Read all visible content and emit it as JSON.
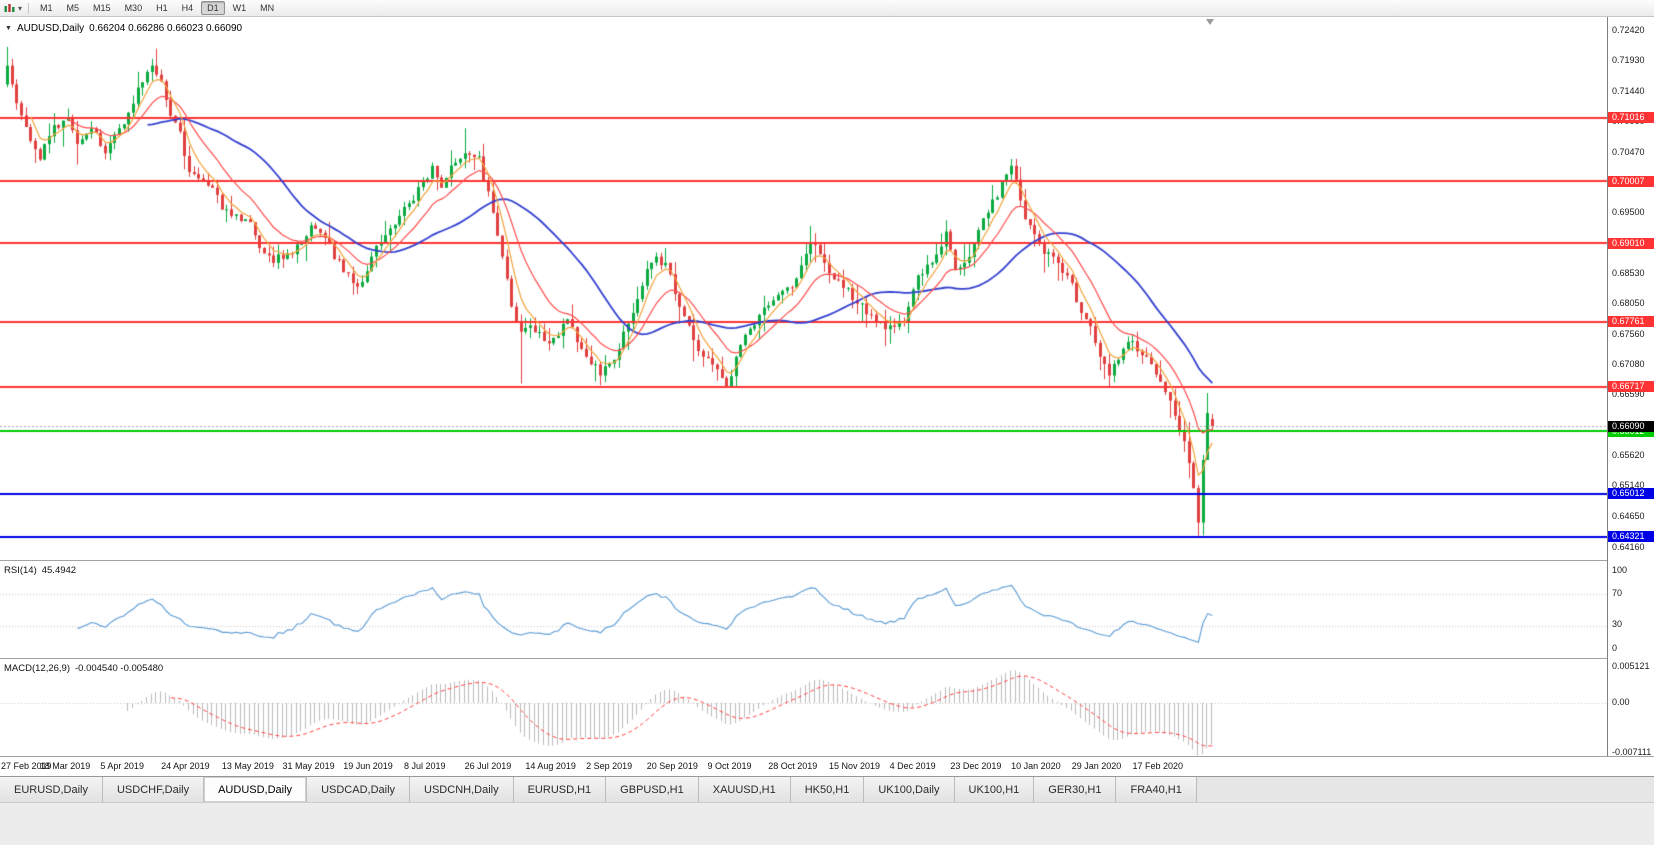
{
  "toolbar": {
    "timeframes": [
      "M1",
      "M5",
      "M15",
      "M30",
      "H1",
      "H4",
      "D1",
      "W1",
      "MN"
    ],
    "active_timeframe": "D1"
  },
  "chart_title": {
    "symbol": "AUDUSD,Daily",
    "ohlc": "0.66204 0.66286 0.66023 0.66090"
  },
  "chart_tabs": {
    "items": [
      "EURUSD,Daily",
      "USDCHF,Daily",
      "AUDUSD,Daily",
      "USDCAD,Daily",
      "USDCNH,Daily",
      "EURUSD,H1",
      "GBPUSD,H1",
      "XAUUSD,H1",
      "HK50,H1",
      "UK100,Daily",
      "UK100,H1",
      "GER30,H1",
      "FRA40,H1"
    ],
    "active_index": 2
  },
  "chart_data": {
    "type": "candlestick",
    "symbol": "AUDUSD",
    "timeframe": "Daily",
    "x_axis": {
      "date_labels": [
        "27 Feb 2019",
        "18 Mar 2019",
        "5 Apr 2019",
        "24 Apr 2019",
        "13 May 2019",
        "31 May 2019",
        "19 Jun 2019",
        "8 Jul 2019",
        "26 Jul 2019",
        "14 Aug 2019",
        "2 Sep 2019",
        "20 Sep 2019",
        "9 Oct 2019",
        "28 Oct 2019",
        "15 Nov 2019",
        "4 Dec 2019",
        "23 Dec 2019",
        "10 Jan 2020",
        "29 Jan 2020",
        "17 Feb 2020"
      ],
      "candles_per_label": 13,
      "candle_count": 259
    },
    "y_axis": {
      "top_price": 0.7242,
      "bottom_price": 0.6416,
      "tick_labels": [
        "0.72420",
        "0.71930",
        "0.71440",
        "0.70960",
        "0.70470",
        "0.69980",
        "0.69500",
        "0.69010",
        "0.68530",
        "0.68050",
        "0.67560",
        "0.67080",
        "0.66590",
        "0.66100",
        "0.65620",
        "0.65140",
        "0.64650",
        "0.64160"
      ]
    },
    "price_anchors": [
      [
        0,
        0.7185
      ],
      [
        2,
        0.7125
      ],
      [
        5,
        0.7065
      ],
      [
        7,
        0.7035
      ],
      [
        10,
        0.709
      ],
      [
        13,
        0.71
      ],
      [
        15,
        0.706
      ],
      [
        18,
        0.7085
      ],
      [
        21,
        0.7045
      ],
      [
        24,
        0.7085
      ],
      [
        26,
        0.711
      ],
      [
        28,
        0.715
      ],
      [
        30,
        0.7175
      ],
      [
        31,
        0.7185
      ],
      [
        33,
        0.716
      ],
      [
        35,
        0.7105
      ],
      [
        37,
        0.708
      ],
      [
        39,
        0.7015
      ],
      [
        41,
        0.7005
      ],
      [
        44,
        0.699
      ],
      [
        46,
        0.6955
      ],
      [
        48,
        0.6945
      ],
      [
        52,
        0.6935
      ],
      [
        55,
        0.6885
      ],
      [
        57,
        0.687
      ],
      [
        60,
        0.6885
      ],
      [
        63,
        0.69
      ],
      [
        65,
        0.693
      ],
      [
        68,
        0.691
      ],
      [
        72,
        0.6855
      ],
      [
        75,
        0.6832
      ],
      [
        78,
        0.688
      ],
      [
        82,
        0.6925
      ],
      [
        86,
        0.6965
      ],
      [
        89,
        0.7
      ],
      [
        91,
        0.7025
      ],
      [
        93,
        0.699
      ],
      [
        96,
        0.703
      ],
      [
        98,
        0.7045
      ],
      [
        101,
        0.704
      ],
      [
        104,
        0.695
      ],
      [
        106,
        0.688
      ],
      [
        108,
        0.68
      ],
      [
        110,
        0.676
      ],
      [
        112,
        0.677
      ],
      [
        115,
        0.6745
      ],
      [
        117,
        0.675
      ],
      [
        120,
        0.678
      ],
      [
        124,
        0.672
      ],
      [
        127,
        0.669
      ],
      [
        130,
        0.6715
      ],
      [
        134,
        0.679
      ],
      [
        137,
        0.686
      ],
      [
        139,
        0.688
      ],
      [
        141,
        0.687
      ],
      [
        143,
        0.682
      ],
      [
        146,
        0.677
      ],
      [
        149,
        0.672
      ],
      [
        152,
        0.67
      ],
      [
        154,
        0.6672
      ],
      [
        156,
        0.672
      ],
      [
        158,
        0.6755
      ],
      [
        160,
        0.677
      ],
      [
        164,
        0.681
      ],
      [
        169,
        0.6845
      ],
      [
        172,
        0.69
      ],
      [
        175,
        0.687
      ],
      [
        179,
        0.683
      ],
      [
        182,
        0.6805
      ],
      [
        186,
        0.6775
      ],
      [
        189,
        0.677
      ],
      [
        192,
        0.6775
      ],
      [
        195,
        0.685
      ],
      [
        198,
        0.687
      ],
      [
        201,
        0.692
      ],
      [
        203,
        0.686
      ],
      [
        205,
        0.687
      ],
      [
        207,
        0.69
      ],
      [
        210,
        0.695
      ],
      [
        213,
        0.7
      ],
      [
        215,
        0.7025
      ],
      [
        218,
        0.694
      ],
      [
        221,
        0.69
      ],
      [
        224,
        0.688
      ],
      [
        227,
        0.685
      ],
      [
        231,
        0.678
      ],
      [
        234,
        0.672
      ],
      [
        236,
        0.669
      ],
      [
        238,
        0.6715
      ],
      [
        241,
        0.6745
      ],
      [
        244,
        0.672
      ],
      [
        247,
        0.668
      ],
      [
        249,
        0.665
      ],
      [
        251,
        0.66
      ],
      [
        252,
        0.6585
      ],
      [
        253,
        0.655
      ],
      [
        254,
        0.651
      ],
      [
        255,
        0.6455
      ],
      [
        256,
        0.6555
      ],
      [
        257,
        0.663
      ],
      [
        258,
        0.6609
      ]
    ],
    "wick_overrides": [
      {
        "i": 0,
        "high": 0.7215
      },
      {
        "i": 31,
        "high": 0.7196
      },
      {
        "i": 75,
        "low": 0.682
      },
      {
        "i": 98,
        "high": 0.7085
      },
      {
        "i": 110,
        "low": 0.6677
      },
      {
        "i": 154,
        "low": 0.6671
      },
      {
        "i": 172,
        "high": 0.6929
      },
      {
        "i": 201,
        "high": 0.6938
      },
      {
        "i": 215,
        "high": 0.7036
      },
      {
        "i": 236,
        "low": 0.667
      },
      {
        "i": 255,
        "low": 0.6434
      },
      {
        "i": 257,
        "high": 0.6662
      }
    ],
    "last_candle": {
      "open": 0.66204,
      "high": 0.66286,
      "low": 0.66023,
      "close": 0.6609
    },
    "noise": 0.0009,
    "wick": 0.0018,
    "seed": 11,
    "colors": {
      "bull": "#0caa41",
      "bear": "#e04040",
      "current_line": "#a8a8a8"
    },
    "horizontal_lines": [
      {
        "price": 0.71016,
        "label": "0.71016",
        "color": "#ff3333"
      },
      {
        "price": 0.70007,
        "label": "0.70007",
        "color": "#ff3333"
      },
      {
        "price": 0.6901,
        "label": "0.69010",
        "color": "#ff3333"
      },
      {
        "price": 0.67761,
        "label": "0.67761",
        "color": "#ff3333"
      },
      {
        "price": 0.66717,
        "label": "0.66717",
        "color": "#ff3333"
      },
      {
        "price": 0.66012,
        "label": "0.66012",
        "color": "#00cc00"
      },
      {
        "price": 0.65012,
        "label": "0.65012",
        "color": "#0000e6"
      },
      {
        "price": 0.64321,
        "label": "0.64321",
        "color": "#0000e6"
      }
    ],
    "current_price": {
      "value": 0.6609,
      "label": "0.66090"
    },
    "moving_averages": [
      {
        "method": "ema",
        "period": 5,
        "color": "#f2a33c",
        "width": 1.2
      },
      {
        "method": "ema",
        "period": 13,
        "color": "#ff4d4d",
        "width": 1.2
      },
      {
        "method": "sma",
        "period": 30,
        "color": "#3340cf",
        "width": 1.8
      }
    ],
    "rsi": {
      "label": "RSI(14)",
      "value": "45.4942",
      "period": 14,
      "levels": [
        70,
        30
      ],
      "tick_labels": [
        "100",
        "70",
        "30",
        "0"
      ],
      "tick_values": [
        100,
        70,
        30,
        0
      ],
      "color": "#5b9bd5",
      "level_color": "#c8c8c8"
    },
    "macd": {
      "label": "MACD(12,26,9)",
      "values": "-0.004540 -0.005480",
      "fast": 12,
      "slow": 26,
      "signal_period": 9,
      "tick_labels": [
        "0.005121",
        "0.00",
        "-0.007111"
      ],
      "tick_values": [
        0.005121,
        0,
        -0.007111
      ],
      "hist_color": "#bbbbbb",
      "signal_color": "#ff4040",
      "zero_color": "#c8c8c8"
    }
  }
}
